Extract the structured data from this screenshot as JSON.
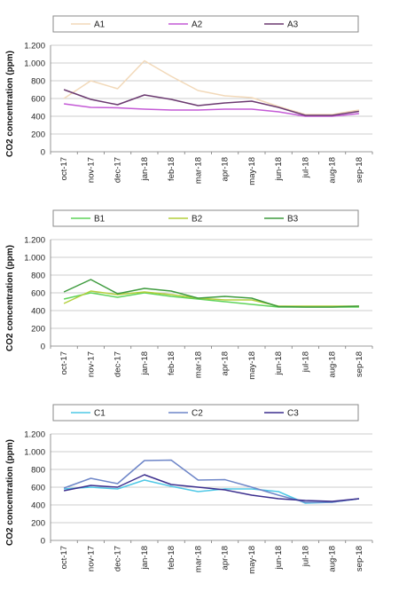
{
  "chart_data": [
    {
      "type": "line",
      "ylabel": "CO2 concentration (ppm)",
      "ylim": [
        0,
        1200
      ],
      "yticks": [
        0,
        200,
        400,
        600,
        800,
        1000,
        1200
      ],
      "ytick_labels": [
        "0",
        "200",
        "400",
        "600",
        "800",
        "1.000",
        "1.200"
      ],
      "categories": [
        "oct-17",
        "nov-17",
        "dec-17",
        "jan-18",
        "feb-18",
        "mar-18",
        "apr-18",
        "may-18",
        "jun-18",
        "jul-18",
        "aug-18",
        "sep-18"
      ],
      "legend_position": "top",
      "grid": "horizontal",
      "series": [
        {
          "name": "A1",
          "color": "#f2d9b9",
          "values": [
            600,
            800,
            710,
            1025,
            850,
            690,
            630,
            610,
            510,
            420,
            420,
            470
          ]
        },
        {
          "name": "A2",
          "color": "#c45ad6",
          "values": [
            540,
            500,
            495,
            480,
            470,
            470,
            480,
            480,
            450,
            400,
            400,
            430
          ]
        },
        {
          "name": "A3",
          "color": "#6b3a70",
          "values": [
            700,
            590,
            530,
            640,
            590,
            520,
            550,
            570,
            500,
            410,
            410,
            455
          ]
        }
      ]
    },
    {
      "type": "line",
      "ylabel": "CO2 concentration (ppm)",
      "ylim": [
        0,
        1200
      ],
      "yticks": [
        0,
        200,
        400,
        600,
        800,
        1000,
        1200
      ],
      "ytick_labels": [
        "0",
        "200",
        "400",
        "600",
        "800",
        "1.000",
        "1.200"
      ],
      "categories": [
        "oct-17",
        "nov-17",
        "dec-17",
        "jan-18",
        "feb-18",
        "mar-18",
        "apr-18",
        "may-18",
        "jun-18",
        "jul-18",
        "aug-18",
        "sep-18"
      ],
      "legend_position": "top",
      "grid": "horizontal",
      "series": [
        {
          "name": "B1",
          "color": "#5fd35a",
          "values": [
            530,
            600,
            550,
            600,
            560,
            530,
            500,
            470,
            440,
            440,
            440,
            440
          ]
        },
        {
          "name": "B2",
          "color": "#b3cf3c",
          "values": [
            480,
            620,
            580,
            610,
            580,
            540,
            520,
            520,
            450,
            450,
            450,
            450
          ]
        },
        {
          "name": "B3",
          "color": "#3e9b3e",
          "values": [
            610,
            750,
            590,
            650,
            620,
            540,
            560,
            540,
            445,
            440,
            440,
            450
          ]
        }
      ]
    },
    {
      "type": "line",
      "ylabel": "CO2 concentration (ppm)",
      "ylim": [
        0,
        1200
      ],
      "yticks": [
        0,
        200,
        400,
        600,
        800,
        1000,
        1200
      ],
      "ytick_labels": [
        "0",
        "200",
        "400",
        "600",
        "800",
        "1.000",
        "1.200"
      ],
      "categories": [
        "oct-17",
        "nov-17",
        "dec-17",
        "jan-18",
        "feb-18",
        "mar-18",
        "apr-18",
        "may-18",
        "jun-18",
        "jul-18",
        "aug-18",
        "sep-18"
      ],
      "legend_position": "top",
      "grid": "horizontal",
      "series": [
        {
          "name": "C1",
          "color": "#4fc8e6",
          "values": [
            580,
            600,
            580,
            680,
            610,
            550,
            580,
            580,
            550,
            420,
            430,
            470
          ]
        },
        {
          "name": "C2",
          "color": "#6e86c8",
          "values": [
            590,
            700,
            640,
            900,
            905,
            680,
            685,
            600,
            510,
            430,
            430,
            470
          ]
        },
        {
          "name": "C3",
          "color": "#3c2f8e",
          "values": [
            560,
            620,
            600,
            740,
            630,
            600,
            570,
            510,
            470,
            450,
            440,
            470
          ]
        }
      ]
    }
  ]
}
